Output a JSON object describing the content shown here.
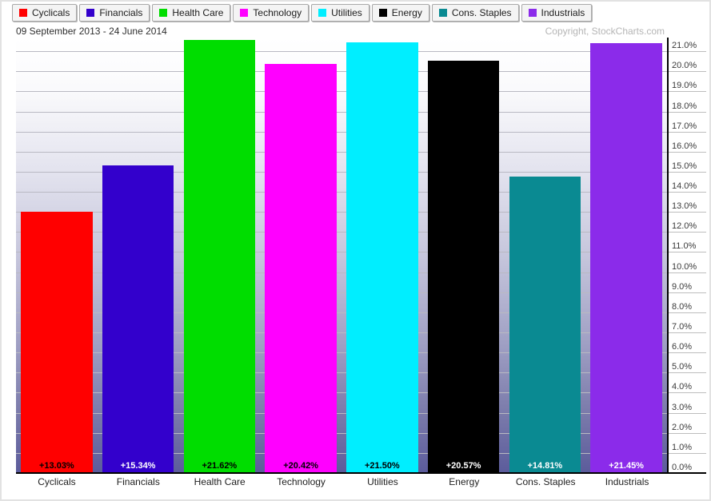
{
  "header": {
    "date_range": "09 September 2013 - 24 June 2014",
    "copyright": "Copyright, StockCharts.com"
  },
  "chart_data": {
    "type": "bar",
    "title": "09 September 2013 - 24 June 2014",
    "categories": [
      "Cyclicals",
      "Financials",
      "Health Care",
      "Technology",
      "Utilities",
      "Energy",
      "Cons. Staples",
      "Industrials"
    ],
    "values": [
      13.03,
      15.34,
      21.62,
      20.42,
      21.5,
      20.57,
      14.81,
      21.45
    ],
    "value_labels": [
      "+13.03%",
      "+15.34%",
      "+21.62%",
      "+20.42%",
      "+21.50%",
      "+20.57%",
      "+14.81%",
      "+21.45%"
    ],
    "bar_colors": [
      "#ff0000",
      "#3300cc",
      "#00dd00",
      "#ff00ff",
      "#00eeff",
      "#000000",
      "#0a8a92",
      "#8b2bea"
    ],
    "value_label_colors": [
      "#000000",
      "#ffffff",
      "#000000",
      "#000000",
      "#000000",
      "#ffffff",
      "#ffffff",
      "#ffffff"
    ],
    "legend": [
      {
        "label": "Cyclicals",
        "color": "#ff0000"
      },
      {
        "label": "Financials",
        "color": "#3300cc"
      },
      {
        "label": "Health Care",
        "color": "#00dd00"
      },
      {
        "label": "Technology",
        "color": "#ff00ff"
      },
      {
        "label": "Utilities",
        "color": "#00eeff"
      },
      {
        "label": "Energy",
        "color": "#000000"
      },
      {
        "label": "Cons. Staples",
        "color": "#0a8a92"
      },
      {
        "label": "Industrials",
        "color": "#8b2bea"
      }
    ],
    "legend_position": "top",
    "grid": true,
    "xlabel": "",
    "ylabel": "",
    "y_tick_labels": [
      "0.0%",
      "1.0%",
      "2.0%",
      "3.0%",
      "4.0%",
      "5.0%",
      "6.0%",
      "7.0%",
      "8.0%",
      "9.0%",
      "10.0%",
      "11.0%",
      "12.0%",
      "13.0%",
      "14.0%",
      "15.0%",
      "16.0%",
      "17.0%",
      "18.0%",
      "19.0%",
      "20.0%",
      "21.0%"
    ],
    "y_tick_values": [
      0,
      1,
      2,
      3,
      4,
      5,
      6,
      7,
      8,
      9,
      10,
      11,
      12,
      13,
      14,
      15,
      16,
      17,
      18,
      19,
      20,
      21
    ],
    "ylim": [
      0,
      21.72
    ]
  }
}
